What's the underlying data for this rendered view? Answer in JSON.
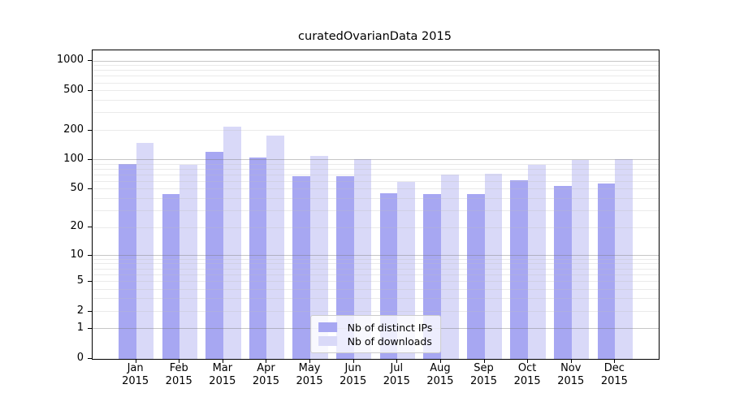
{
  "page": {
    "background": "#ffffff"
  },
  "chart_data": {
    "type": "bar",
    "title": "curatedOvarianData 2015",
    "scale": "log1p",
    "categories": [
      "Jan",
      "Feb",
      "Mar",
      "Apr",
      "May",
      "Jun",
      "Jul",
      "Aug",
      "Sep",
      "Oct",
      "Nov",
      "Dec"
    ],
    "year_label": "2015",
    "series": [
      {
        "name": "Nb of distinct IPs",
        "color": "#a7a7f2",
        "values": [
          92,
          45,
          122,
          107,
          68,
          69,
          46,
          45,
          45,
          62,
          54,
          58
        ]
      },
      {
        "name": "Nb of downloads",
        "color": "#d9d9f8",
        "values": [
          150,
          90,
          220,
          177,
          111,
          103,
          60,
          71,
          72,
          90,
          101,
          103
        ]
      }
    ],
    "y_ticks": [
      0,
      1,
      2,
      5,
      10,
      20,
      50,
      100,
      200,
      500,
      1000
    ],
    "ylim": [
      0,
      1290
    ],
    "grid": true,
    "legend_position": "lower center",
    "xlabel": "",
    "ylabel": ""
  },
  "colors": {
    "axis": "#000000",
    "text": "#000000",
    "grid_major": "#c6c6c6",
    "grid_minor": "#ebebeb",
    "legend_bg": "#ffffff",
    "legend_border": "#cccccc"
  }
}
